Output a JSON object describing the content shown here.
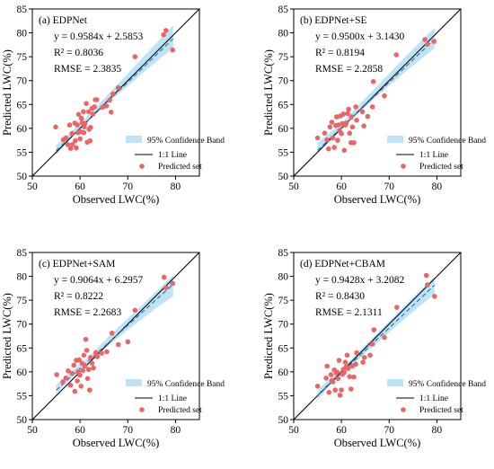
{
  "colors": {
    "band": "#bfe3f6",
    "point": "#ec6465",
    "fit_line": "#2f78b8",
    "one_to_one": "#000000"
  },
  "chart_data": [
    {
      "type": "scatter",
      "title": "(a) EDPNet",
      "xlabel": "Observed LWC(%)",
      "ylabel": "Predicted LWC(%)",
      "xlim": [
        50,
        85
      ],
      "ylim": [
        50,
        85
      ],
      "xticks": [
        "50",
        "60",
        "70",
        "80"
      ],
      "yticks": [
        "50",
        "55",
        "60",
        "65",
        "70",
        "75",
        "80",
        "85"
      ],
      "grid": false,
      "legend_position": "bottom-right",
      "legend": [
        "95% Confidence Band",
        "1:1 Line",
        "Predicted set"
      ],
      "annotations": [
        "y = 0.9584x + 2.5853",
        "R² = 0.8036",
        "RMSE = 2.3835"
      ],
      "fit": {
        "slope": 0.9584,
        "intercept": 2.5853,
        "x_range": [
          55,
          79.5
        ]
      },
      "band": {
        "x": [
          55,
          58,
          61,
          64,
          67,
          70,
          73,
          76,
          79.5
        ],
        "lower": [
          54.4,
          57.9,
          60.8,
          63.6,
          66.3,
          68.9,
          71.5,
          74.0,
          76.9
        ],
        "upper": [
          56.5,
          59.2,
          62.0,
          65.2,
          68.3,
          71.5,
          74.7,
          77.9,
          81.6
        ]
      },
      "points": [
        [
          54.9,
          60.3
        ],
        [
          56.5,
          57.6
        ],
        [
          57.0,
          58.0
        ],
        [
          57.4,
          56.6
        ],
        [
          57.8,
          60.7
        ],
        [
          58.0,
          55.8
        ],
        [
          58.3,
          58.9
        ],
        [
          58.4,
          56.6
        ],
        [
          58.9,
          61.1
        ],
        [
          59.0,
          57.4
        ],
        [
          59.2,
          55.9
        ],
        [
          59.4,
          60.7
        ],
        [
          59.6,
          59.1
        ],
        [
          59.7,
          62.9
        ],
        [
          60.0,
          57.8
        ],
        [
          60.1,
          59.3
        ],
        [
          60.3,
          62.1
        ],
        [
          60.4,
          61.2
        ],
        [
          60.7,
          63.5
        ],
        [
          60.8,
          59.1
        ],
        [
          60.9,
          60.3
        ],
        [
          61.0,
          61.0
        ],
        [
          61.3,
          65.2
        ],
        [
          61.5,
          57.1
        ],
        [
          61.8,
          63.5
        ],
        [
          61.9,
          59.8
        ],
        [
          62.1,
          57.4
        ],
        [
          62.2,
          60.2
        ],
        [
          62.5,
          64.2
        ],
        [
          62.7,
          63.0
        ],
        [
          63.0,
          64.5
        ],
        [
          63.2,
          66.0
        ],
        [
          63.5,
          66.0
        ],
        [
          64.7,
          64.4
        ],
        [
          65.5,
          64.7
        ],
        [
          66.2,
          65.9
        ],
        [
          66.5,
          63.4
        ],
        [
          66.9,
          67.2
        ],
        [
          68.0,
          68.5
        ],
        [
          71.5,
          75.0
        ],
        [
          77.5,
          79.6
        ],
        [
          78.0,
          80.5
        ],
        [
          79.4,
          76.4
        ]
      ]
    },
    {
      "type": "scatter",
      "title": "(b) EDPNet+SE",
      "xlabel": "Observed LWC(%)",
      "ylabel": "Predicted LWC(%)",
      "xlim": [
        50,
        85
      ],
      "ylim": [
        50,
        85
      ],
      "xticks": [
        "50",
        "60",
        "70",
        "80"
      ],
      "yticks": [
        "50",
        "55",
        "60",
        "65",
        "70",
        "75",
        "80",
        "85"
      ],
      "grid": false,
      "legend_position": "bottom-right",
      "legend": [
        "95% Confidence Band",
        "1:1 Line",
        "Predicted set"
      ],
      "annotations": [
        "y = 0.9500x + 3.1430",
        "R² = 0.8194",
        "RMSE = 2.2858"
      ],
      "fit": {
        "slope": 0.95,
        "intercept": 3.143,
        "x_range": [
          55,
          79.5
        ]
      },
      "band": {
        "x": [
          55,
          58,
          61,
          64,
          67,
          70,
          73,
          76,
          79.5
        ],
        "lower": [
          54.8,
          58.0,
          60.9,
          63.6,
          66.3,
          69.0,
          71.5,
          74.0,
          76.8
        ],
        "upper": [
          57.0,
          59.4,
          62.1,
          65.3,
          68.4,
          71.5,
          74.6,
          77.6,
          81.1
        ]
      },
      "points": [
        [
          55.0,
          58.0
        ],
        [
          56.5,
          59.0
        ],
        [
          57.0,
          57.6
        ],
        [
          57.3,
          55.7
        ],
        [
          57.6,
          60.3
        ],
        [
          58.0,
          61.3
        ],
        [
          58.2,
          58.0
        ],
        [
          58.5,
          56.0
        ],
        [
          58.8,
          60.6
        ],
        [
          59.0,
          62.4
        ],
        [
          59.2,
          57.5
        ],
        [
          59.4,
          60.7
        ],
        [
          59.6,
          59.5
        ],
        [
          59.8,
          62.6
        ],
        [
          60.0,
          58.9
        ],
        [
          60.2,
          61.0
        ],
        [
          60.4,
          63.0
        ],
        [
          60.6,
          55.4
        ],
        [
          60.8,
          60.7
        ],
        [
          61.0,
          61.1
        ],
        [
          61.3,
          63.1
        ],
        [
          61.5,
          64.0
        ],
        [
          61.7,
          59.0
        ],
        [
          62.0,
          57.0
        ],
        [
          62.1,
          62.4
        ],
        [
          62.3,
          60.3
        ],
        [
          62.6,
          57.0
        ],
        [
          63.0,
          64.5
        ],
        [
          63.2,
          61.7
        ],
        [
          64.4,
          63.5
        ],
        [
          64.7,
          60.5
        ],
        [
          65.5,
          62.5
        ],
        [
          66.5,
          64.5
        ],
        [
          66.7,
          69.8
        ],
        [
          69.0,
          66.8
        ],
        [
          71.5,
          75.4
        ],
        [
          77.5,
          78.6
        ],
        [
          78.0,
          77.6
        ],
        [
          79.4,
          78.2
        ]
      ]
    },
    {
      "type": "scatter",
      "title": "(c) EDPNet+SAM",
      "xlabel": "Observed LWC(%)",
      "ylabel": "Predicted LWC(%)",
      "xlim": [
        50,
        85
      ],
      "ylim": [
        50,
        85
      ],
      "xticks": [
        "50",
        "60",
        "70",
        "80"
      ],
      "yticks": [
        "50",
        "55",
        "60",
        "65",
        "70",
        "75",
        "80",
        "85"
      ],
      "grid": false,
      "legend_position": "bottom-right",
      "legend": [
        "95% Confidence Band",
        "1:1 Line",
        "Predicted set"
      ],
      "annotations": [
        "y = 0.9064x + 6.2957",
        "R² = 0.8222",
        "RMSE = 2.2683"
      ],
      "fit": {
        "slope": 0.9064,
        "intercept": 6.2957,
        "x_range": [
          55,
          79.5
        ]
      },
      "band": {
        "x": [
          55,
          58,
          61,
          64,
          67,
          70,
          73,
          76,
          79.5
        ],
        "lower": [
          55.3,
          58.5,
          61.3,
          63.9,
          66.4,
          68.8,
          71.1,
          73.4,
          75.8
        ],
        "upper": [
          57.3,
          59.9,
          62.4,
          65.4,
          68.4,
          71.2,
          74.0,
          76.9,
          80.3
        ]
      },
      "points": [
        [
          55.1,
          59.4
        ],
        [
          56.4,
          57.9
        ],
        [
          57.0,
          58.7
        ],
        [
          57.5,
          60.2
        ],
        [
          58.0,
          57.2
        ],
        [
          58.3,
          59.7
        ],
        [
          58.7,
          61.4
        ],
        [
          58.9,
          55.9
        ],
        [
          59.2,
          62.4
        ],
        [
          59.4,
          58.1
        ],
        [
          59.6,
          60.0
        ],
        [
          59.8,
          62.5
        ],
        [
          60.0,
          59.3
        ],
        [
          60.2,
          57.0
        ],
        [
          60.4,
          61.8
        ],
        [
          60.6,
          60.3
        ],
        [
          60.8,
          63.5
        ],
        [
          61.0,
          61.2
        ],
        [
          61.2,
          66.8
        ],
        [
          61.4,
          64.5
        ],
        [
          61.6,
          58.6
        ],
        [
          61.8,
          60.5
        ],
        [
          62.0,
          56.2
        ],
        [
          62.2,
          63.0
        ],
        [
          62.5,
          61.8
        ],
        [
          62.8,
          60.8
        ],
        [
          63.3,
          64.0
        ],
        [
          63.6,
          63.2
        ],
        [
          64.5,
          63.9
        ],
        [
          65.6,
          64.2
        ],
        [
          66.7,
          68.1
        ],
        [
          68.0,
          65.7
        ],
        [
          70.0,
          66.3
        ],
        [
          71.5,
          72.9
        ],
        [
          77.6,
          79.8
        ],
        [
          78.0,
          77.6
        ],
        [
          79.4,
          78.5
        ]
      ]
    },
    {
      "type": "scatter",
      "title": "(d) EDPNet+CBAM",
      "xlabel": "Observed LWC(%)",
      "ylabel": "Predicted LWC(%)",
      "xlim": [
        50,
        85
      ],
      "ylim": [
        50,
        85
      ],
      "xticks": [
        "50",
        "60",
        "70",
        "80"
      ],
      "yticks": [
        "50",
        "55",
        "60",
        "65",
        "70",
        "75",
        "80",
        "85"
      ],
      "grid": false,
      "legend_position": "bottom-right",
      "legend": [
        "95% Confidence Band",
        "1:1 Line",
        "Predicted set"
      ],
      "annotations": [
        "y = 0.9428x + 3.2082",
        "R² = 0.8430",
        "RMSE = 2.1311"
      ],
      "fit": {
        "slope": 0.9428,
        "intercept": 3.2082,
        "x_range": [
          55,
          79.5
        ]
      },
      "band": {
        "x": [
          55,
          58,
          61,
          64,
          67,
          70,
          73,
          76,
          79.5
        ],
        "lower": [
          54.2,
          57.5,
          60.3,
          63.0,
          65.7,
          68.3,
          70.9,
          73.4,
          76.3
        ],
        "upper": [
          56.2,
          58.9,
          61.6,
          64.6,
          67.6,
          70.6,
          73.6,
          76.6,
          80.0
        ]
      },
      "points": [
        [
          55.0,
          57.0
        ],
        [
          56.8,
          58.7
        ],
        [
          57.0,
          61.2
        ],
        [
          57.4,
          55.7
        ],
        [
          57.8,
          59.4
        ],
        [
          58.0,
          58.2
        ],
        [
          58.2,
          57.9
        ],
        [
          58.5,
          60.4
        ],
        [
          58.7,
          56.2
        ],
        [
          58.9,
          59.8
        ],
        [
          59.1,
          59.9
        ],
        [
          59.3,
          58.6
        ],
        [
          59.5,
          62.4
        ],
        [
          59.7,
          55.1
        ],
        [
          60.0,
          56.2
        ],
        [
          60.2,
          59.5
        ],
        [
          60.4,
          60.5
        ],
        [
          60.6,
          59.9
        ],
        [
          60.8,
          62.0
        ],
        [
          61.0,
          61.0
        ],
        [
          61.2,
          63.5
        ],
        [
          61.4,
          60.7
        ],
        [
          61.7,
          59.0
        ],
        [
          62.0,
          56.4
        ],
        [
          62.3,
          61.2
        ],
        [
          62.6,
          58.9
        ],
        [
          63.0,
          61.6
        ],
        [
          63.2,
          64.0
        ],
        [
          64.5,
          62.0
        ],
        [
          64.8,
          63.0
        ],
        [
          66.0,
          63.5
        ],
        [
          66.5,
          65.8
        ],
        [
          66.8,
          68.8
        ],
        [
          69.0,
          67.2
        ],
        [
          71.6,
          73.5
        ],
        [
          77.8,
          80.2
        ],
        [
          78.0,
          78.2
        ],
        [
          79.5,
          75.8
        ]
      ]
    }
  ]
}
